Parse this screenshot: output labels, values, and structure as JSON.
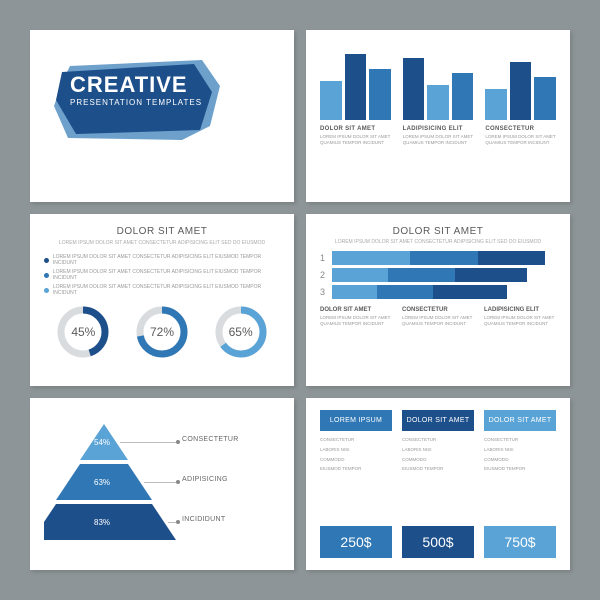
{
  "colors": {
    "blue_dark": "#1d4f8b",
    "blue_mid": "#2f77b5",
    "blue_light": "#5aa3d6",
    "blue_pale": "#a8cde8",
    "grey_track": "#d9dcde",
    "text_dark": "#5a5a5a",
    "text_light": "#999999"
  },
  "slide1": {
    "title": "CREATIVE",
    "subtitle": "PRESENTATION TEMPLATES",
    "badge_fill": "#1d4f8b",
    "badge_fill2": "#2f77b5"
  },
  "slide2": {
    "groups": [
      {
        "label": "DOLOR SIT AMET",
        "desc": "LOREM IPSUM DOLOR SIT AMET QUAMIUS TEMPOR INCIDUNT",
        "bars": [
          50,
          85,
          65
        ],
        "colors": [
          "#5aa3d6",
          "#1d4f8b",
          "#2f77b5"
        ]
      },
      {
        "label": "LADIPISICING ELIT",
        "desc": "LOREM IPSUM DOLOR SIT AMET QUAMIUS TEMPOR INCIDUNT",
        "bars": [
          80,
          45,
          60
        ],
        "colors": [
          "#1d4f8b",
          "#5aa3d6",
          "#2f77b5"
        ]
      },
      {
        "label": "CONSECTETUR",
        "desc": "LOREM IPSUM DOLOR SIT AMET QUAMIUS TEMPOR INCIDUNT",
        "bars": [
          40,
          75,
          55
        ],
        "colors": [
          "#5aa3d6",
          "#1d4f8b",
          "#2f77b5"
        ]
      }
    ]
  },
  "slide3": {
    "title": "DOLOR SIT AMET",
    "subtitle": "LOREM IPSUM DOLOR SIT AMET CONSECTETUR ADIPISICING ELIT SED DO EIUSMOD",
    "bullets": [
      {
        "color": "#1d4f8b",
        "text": "LOREM IPSUM DOLOR SIT AMET CONSECTETUR ADIPISICING ELIT EIUSMOD TEMPOR INCIDUNT"
      },
      {
        "color": "#2f77b5",
        "text": "LOREM IPSUM DOLOR SIT AMET CONSECTETUR ADIPISICING ELIT EIUSMOD TEMPOR INCIDUNT"
      },
      {
        "color": "#5aa3d6",
        "text": "LOREM IPSUM DOLOR SIT AMET CONSECTETUR ADIPISICING ELIT EIUSMOD TEMPOR INCIDUNT"
      }
    ],
    "donuts": [
      {
        "pct": 45,
        "label": "45%",
        "color": "#1d4f8b"
      },
      {
        "pct": 72,
        "label": "72%",
        "color": "#2f77b5"
      },
      {
        "pct": 65,
        "label": "65%",
        "color": "#5aa3d6"
      }
    ],
    "track_color": "#d9dcde"
  },
  "slide4": {
    "title": "DOLOR SIT AMET",
    "subtitle": "LOREM IPSUM DOLOR SIT AMET CONSECTETUR ADIPISICING ELIT SED DO EIUSMOD",
    "rows": [
      {
        "num": "1",
        "segments": [
          {
            "w": 35,
            "c": "#5aa3d6"
          },
          {
            "w": 30,
            "c": "#2f77b5"
          },
          {
            "w": 30,
            "c": "#1d4f8b"
          }
        ]
      },
      {
        "num": "2",
        "segments": [
          {
            "w": 25,
            "c": "#5aa3d6"
          },
          {
            "w": 30,
            "c": "#2f77b5"
          },
          {
            "w": 32,
            "c": "#1d4f8b"
          }
        ]
      },
      {
        "num": "3",
        "segments": [
          {
            "w": 20,
            "c": "#5aa3d6"
          },
          {
            "w": 25,
            "c": "#2f77b5"
          },
          {
            "w": 33,
            "c": "#1d4f8b"
          }
        ]
      }
    ],
    "cols": [
      {
        "h": "DOLOR SIT AMET",
        "p": "LOREM IPSUM DOLOR SIT AMET QUAMIUS TEMPOR INCIDUNT"
      },
      {
        "h": "CONSECTETUR",
        "p": "LOREM IPSUM DOLOR SIT AMET QUAMIUS TEMPOR INCIDUNT"
      },
      {
        "h": "LADIPISICING ELIT",
        "p": "LOREM IPSUM DOLOR SIT AMET QUAMIUS TEMPOR INCIDUNT"
      }
    ]
  },
  "slide5": {
    "layers": [
      {
        "pct": "54%",
        "label": "CONSECTETUR",
        "color": "#5aa3d6"
      },
      {
        "pct": "63%",
        "label": "ADIPISICING",
        "color": "#2f77b5"
      },
      {
        "pct": "83%",
        "label": "INCIDIDUNT",
        "color": "#1d4f8b"
      }
    ]
  },
  "slide6": {
    "cols": [
      {
        "head": "LOREM IPSUM",
        "items": [
          "CONSECTETUR",
          "LABORIS NISI",
          "COMMODO",
          "EIUSMOD TEMPOR"
        ],
        "price": "250$",
        "head_c": "#2f77b5",
        "foot_c": "#2f77b5"
      },
      {
        "head": "DOLOR SIT AMET",
        "items": [
          "CONSECTETUR",
          "LABORIS NISI",
          "COMMODO",
          "EIUSMOD TEMPOR"
        ],
        "price": "500$",
        "head_c": "#1d4f8b",
        "foot_c": "#1d4f8b"
      },
      {
        "head": "DOLOR SIT AMET",
        "items": [
          "CONSECTETUR",
          "LABORIS NISI",
          "COMMODO",
          "EIUSMOD TEMPOR"
        ],
        "price": "750$",
        "head_c": "#5aa3d6",
        "foot_c": "#5aa3d6"
      }
    ]
  }
}
